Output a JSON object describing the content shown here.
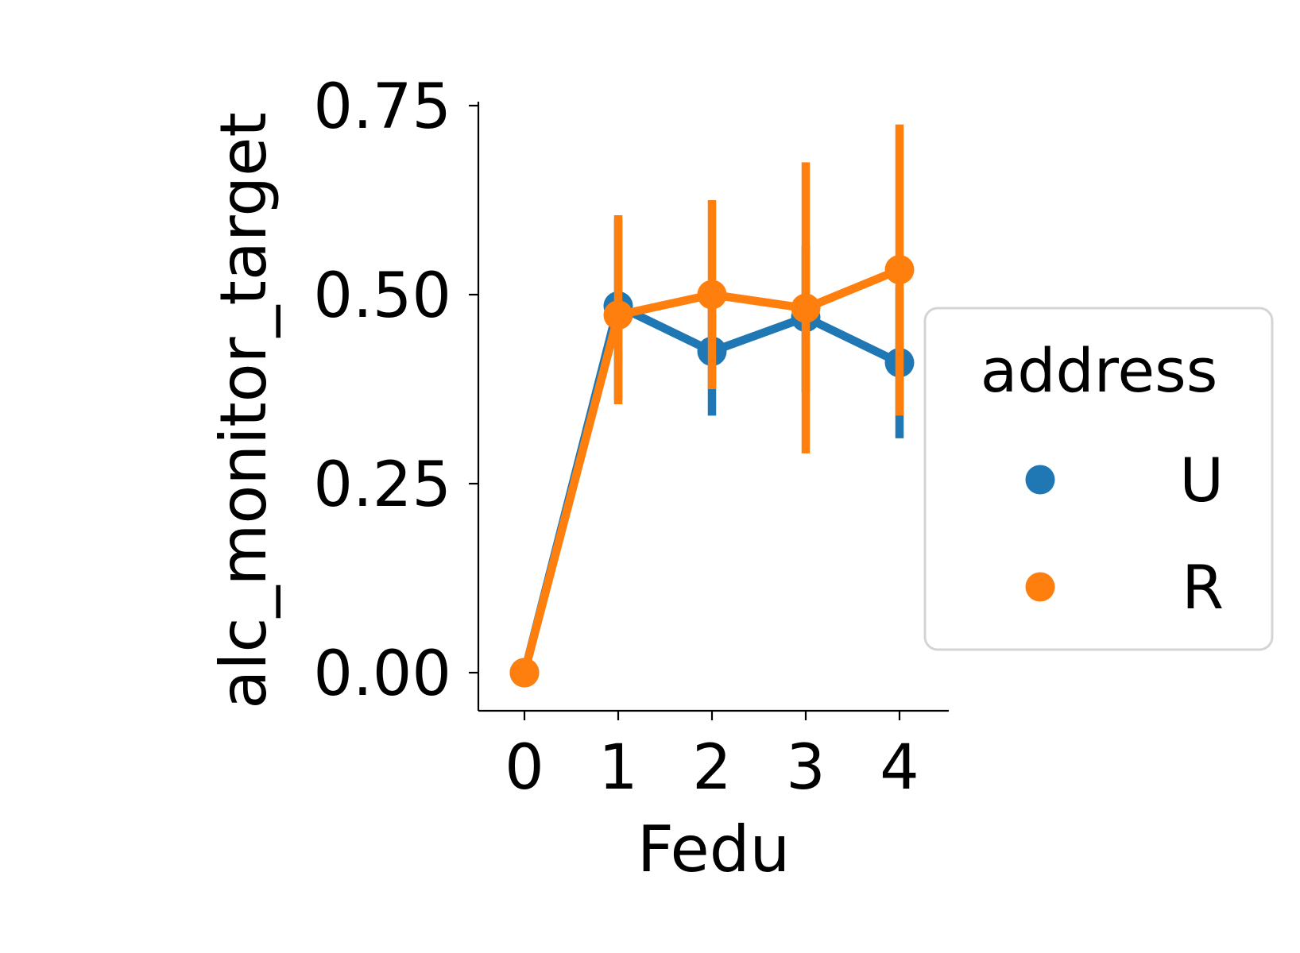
{
  "chart_data": {
    "type": "line",
    "title": "",
    "xlabel": "Fedu",
    "ylabel": "alc_monitor_target",
    "categories": [
      "0",
      "1",
      "2",
      "3",
      "4"
    ],
    "yticks": [
      "0.00",
      "0.25",
      "0.50",
      "0.75"
    ],
    "ytick_values": [
      0,
      0.25,
      0.5,
      0.75
    ],
    "ylim": [
      -0.05,
      0.76
    ],
    "grid": false,
    "legend": {
      "title": "address",
      "placement": "right-outside"
    },
    "series": [
      {
        "name": "U",
        "color": "#1f77b4",
        "values": [
          0.0,
          0.485,
          0.425,
          0.47,
          0.41
        ],
        "ci_low": [
          0.0,
          0.36,
          0.34,
          0.37,
          0.31
        ],
        "ci_high": [
          0.0,
          0.6,
          0.5,
          0.565,
          0.51
        ]
      },
      {
        "name": "R",
        "color": "#ff7f0e",
        "values": [
          0.0,
          0.473,
          0.5,
          0.482,
          0.533
        ],
        "ci_low": [
          0.0,
          0.355,
          0.375,
          0.29,
          0.34
        ],
        "ci_high": [
          0.0,
          0.605,
          0.625,
          0.675,
          0.725
        ]
      }
    ]
  }
}
